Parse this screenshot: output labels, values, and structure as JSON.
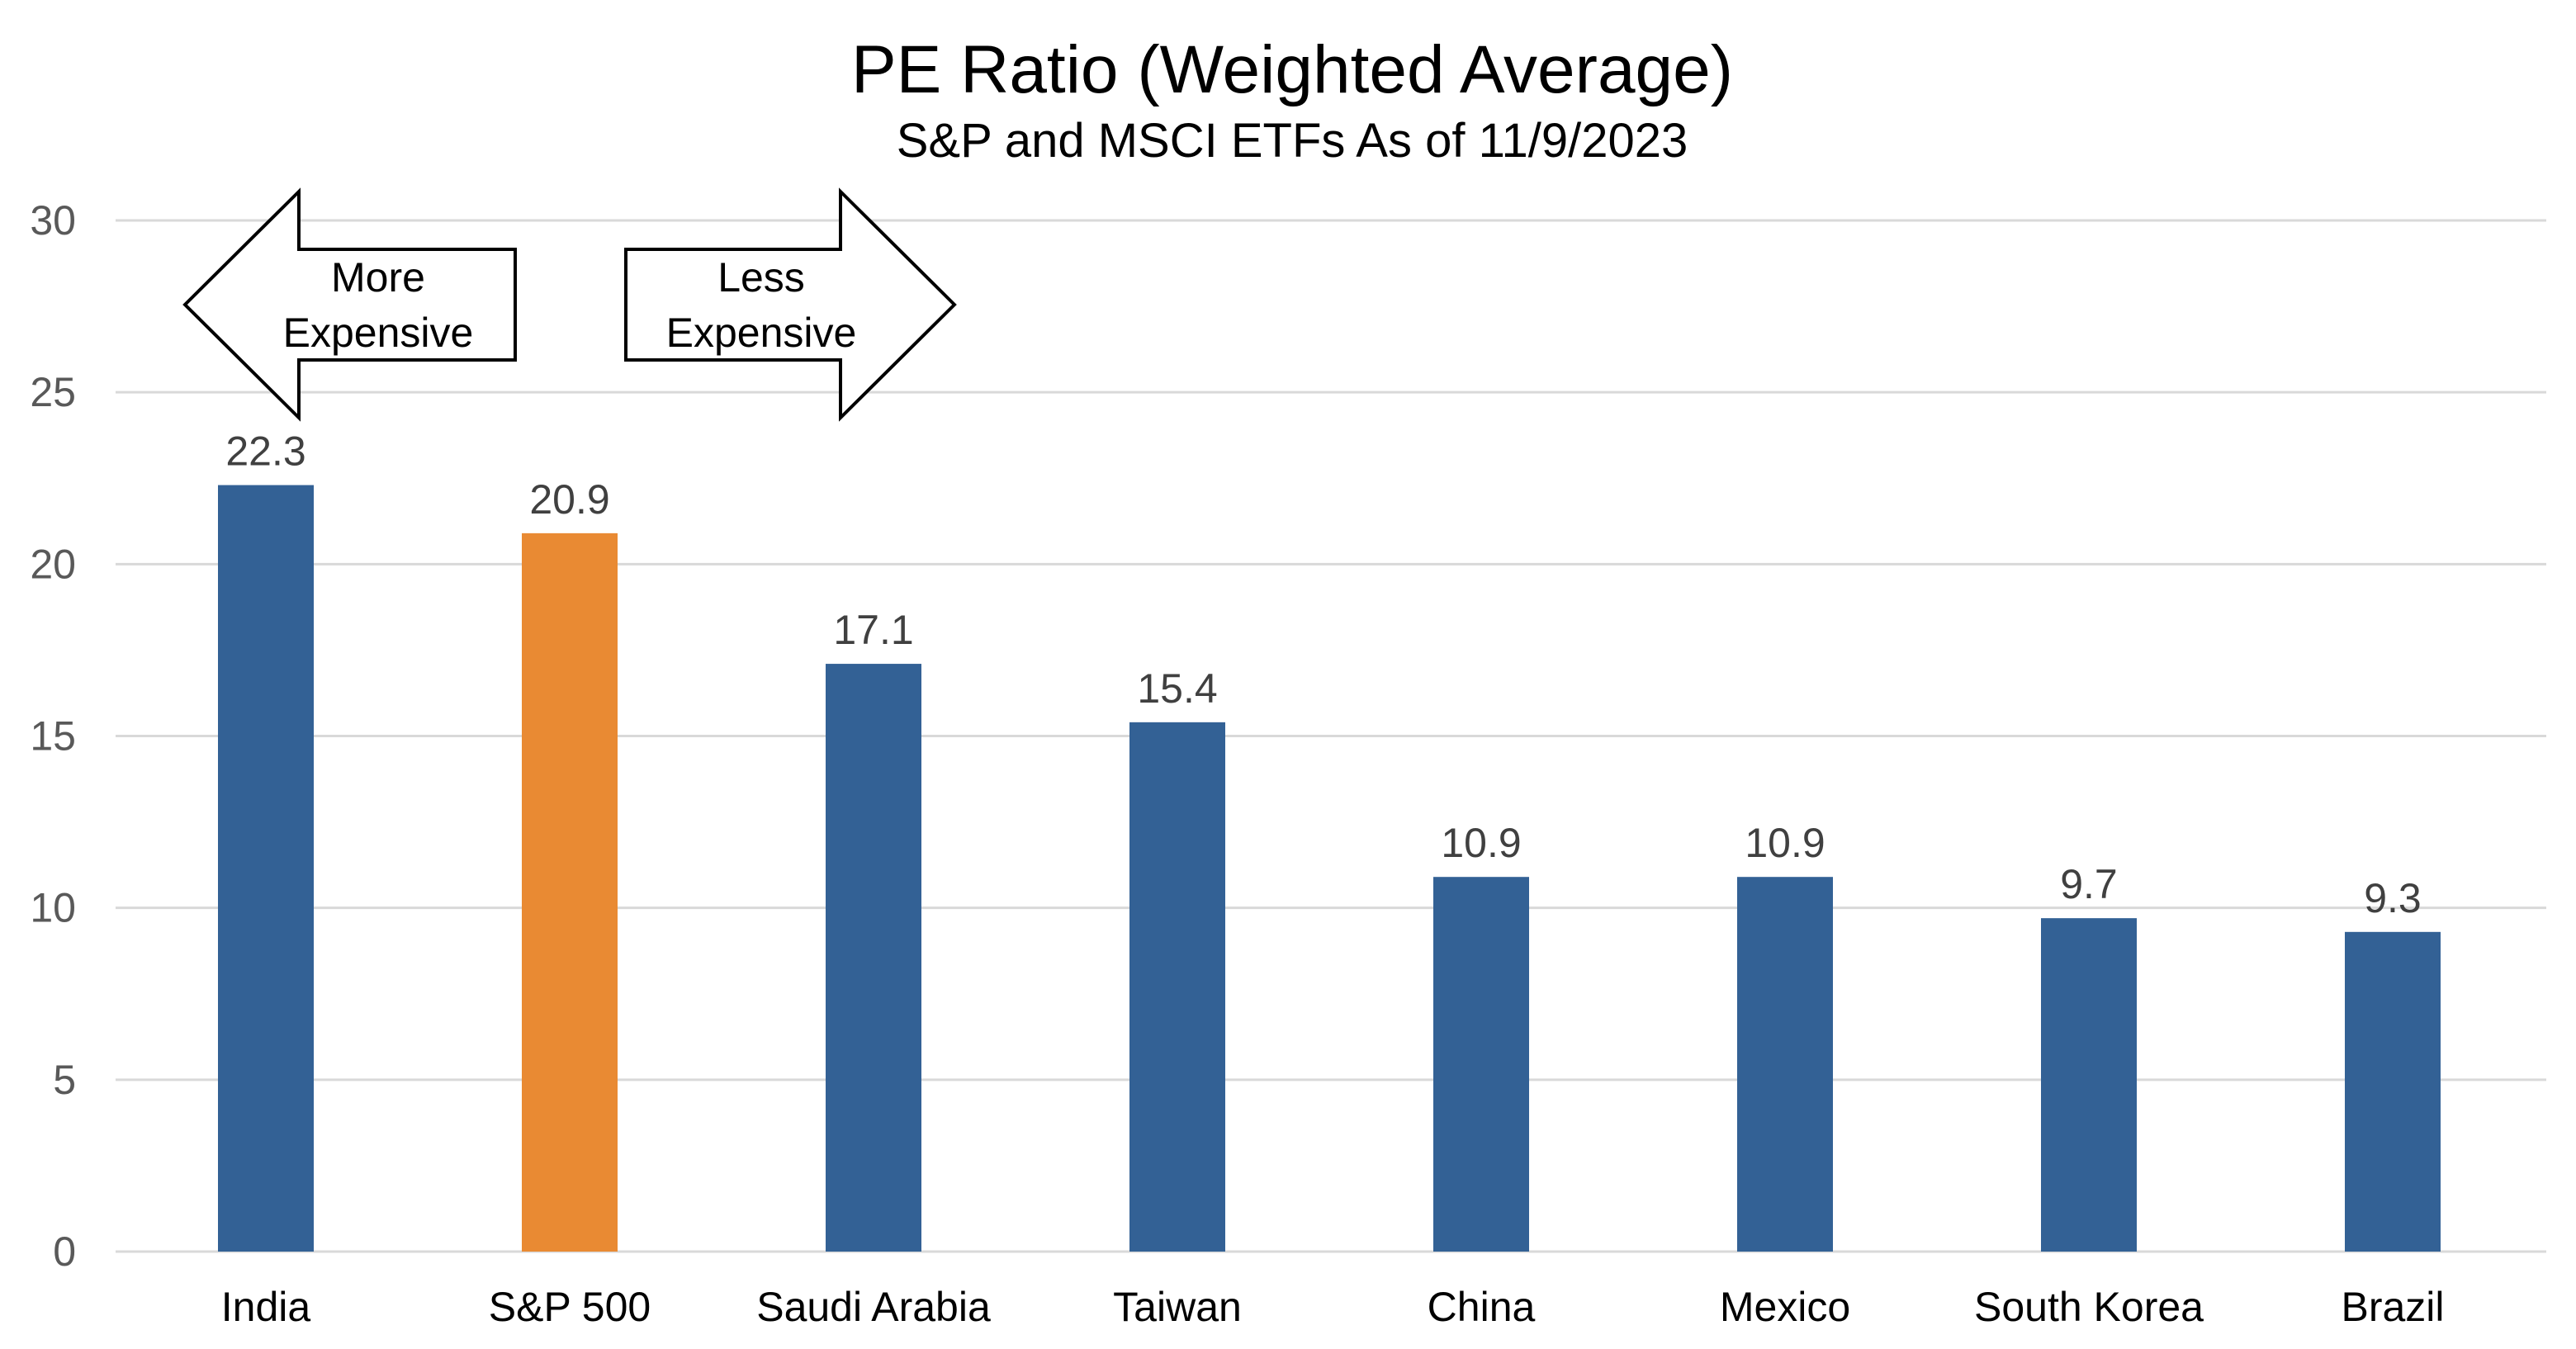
{
  "chart_data": {
    "type": "bar",
    "title": "PE Ratio (Weighted Average)",
    "subtitle": "S&P and MSCI ETFs As of 11/9/2023",
    "xlabel": "",
    "ylabel": "",
    "categories": [
      "India",
      "S&P 500",
      "Saudi Arabia",
      "Taiwan",
      "China",
      "Mexico",
      "South Korea",
      "Brazil"
    ],
    "values": [
      22.3,
      20.9,
      17.1,
      15.4,
      10.9,
      10.9,
      9.7,
      9.3
    ],
    "data_labels": [
      "22.3",
      "20.9",
      "17.1",
      "15.4",
      "10.9",
      "10.9",
      "9.7",
      "9.3"
    ],
    "ylim": [
      0,
      30
    ],
    "yticks": [
      0,
      5,
      10,
      15,
      20,
      25,
      30
    ],
    "ytick_labels": [
      "0",
      "5",
      "10",
      "15",
      "20",
      "25",
      "30"
    ],
    "grid": true,
    "colors": {
      "default_bar": "#336195",
      "highlight_bar": "#E98A33"
    },
    "bar_colors": [
      "#336195",
      "#E98A33",
      "#336195",
      "#336195",
      "#336195",
      "#336195",
      "#336195",
      "#336195"
    ],
    "annotations": {
      "left_arrow": {
        "direction": "left",
        "lines": [
          "More",
          "Expensive"
        ]
      },
      "right_arrow": {
        "direction": "right",
        "lines": [
          "Less",
          "Expensive"
        ]
      }
    }
  }
}
